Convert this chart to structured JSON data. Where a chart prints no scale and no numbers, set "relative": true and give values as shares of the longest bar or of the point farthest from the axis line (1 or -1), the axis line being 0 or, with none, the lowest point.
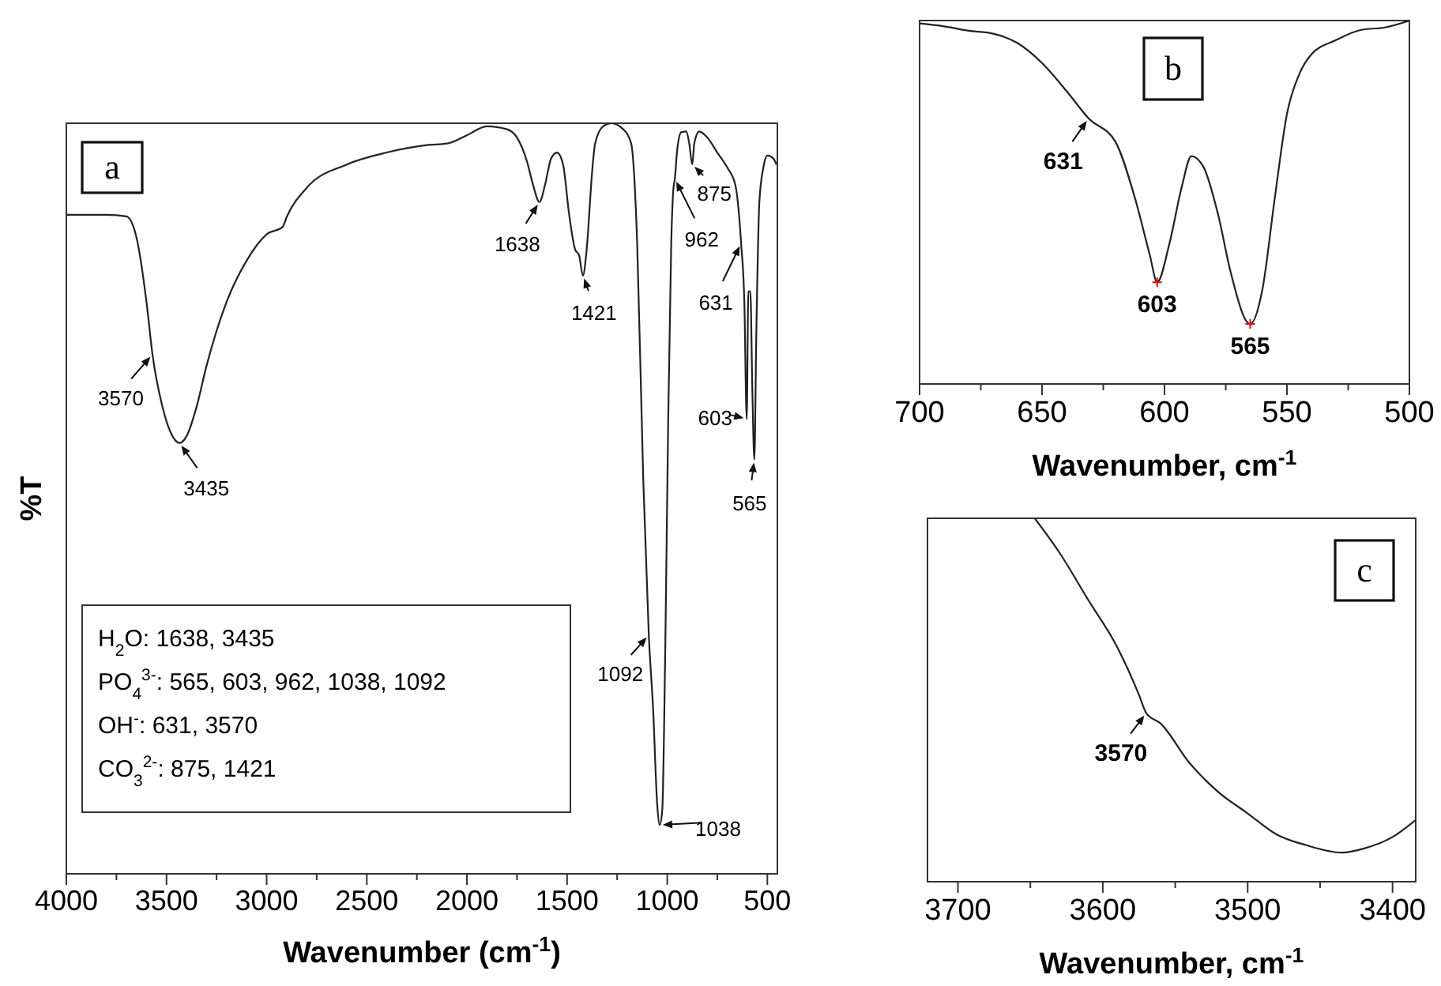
{
  "chart_data": [
    {
      "type": "line",
      "title": "a",
      "xlabel": "Wavenumber (cm$^{-1}$)",
      "ylabel": "%T",
      "relative": true,
      "xlim": [
        4000,
        450
      ],
      "xticks": [
        4000,
        {
          "value": 3750,
          "label": null
        },
        3500,
        {
          "value": 3250,
          "label": null
        },
        3000,
        {
          "value": 2750,
          "label": null
        },
        2500,
        {
          "value": 2250,
          "label": null
        },
        2000,
        {
          "value": 1750,
          "label": null
        },
        1500,
        {
          "value": 1250,
          "label": null
        },
        1000,
        {
          "value": 750,
          "label": null
        },
        500
      ],
      "series": [
        {
          "type": "line",
          "color": "#222222",
          "x": [
            4000,
            3800,
            3700,
            3650,
            3600,
            3570,
            3520,
            3470,
            3435,
            3400,
            3350,
            3300,
            3200,
            3100,
            3000,
            2920,
            2900,
            2800,
            2600,
            2400,
            2200,
            2100,
            2000,
            1900,
            1800,
            1750,
            1700,
            1670,
            1638,
            1610,
            1580,
            1550,
            1520,
            1490,
            1460,
            1440,
            1421,
            1405,
            1395,
            1380,
            1360,
            1320,
            1280,
            1220,
            1180,
            1150,
            1120,
            1092,
            1070,
            1050,
            1038,
            1025,
            1010,
            995,
            980,
            970,
            962,
            950,
            930,
            905,
            890,
            875,
            865,
            840,
            800,
            750,
            700,
            660,
            631,
            615,
            603,
            595,
            585,
            575,
            565,
            555,
            540,
            520,
            500,
            470,
            455
          ],
          "values": [
            0.878,
            0.878,
            0.876,
            0.848,
            0.762,
            0.692,
            0.622,
            0.583,
            0.574,
            0.583,
            0.622,
            0.677,
            0.762,
            0.817,
            0.852,
            0.862,
            0.875,
            0.914,
            0.945,
            0.961,
            0.971,
            0.973,
            0.984,
            0.996,
            0.992,
            0.981,
            0.949,
            0.918,
            0.895,
            0.918,
            0.953,
            0.961,
            0.945,
            0.879,
            0.832,
            0.824,
            0.797,
            0.824,
            0.856,
            0.918,
            0.973,
            0.996,
            1.0,
            0.992,
            0.973,
            0.84,
            0.528,
            0.318,
            0.217,
            0.092,
            0.065,
            0.084,
            0.295,
            0.606,
            0.84,
            0.91,
            0.926,
            0.965,
            0.988,
            0.989,
            0.973,
            0.945,
            0.973,
            0.989,
            0.981,
            0.961,
            0.941,
            0.918,
            0.84,
            0.762,
            0.606,
            0.776,
            0.776,
            0.645,
            0.552,
            0.723,
            0.895,
            0.941,
            0.957,
            0.953,
            0.945
          ]
        }
      ],
      "annotations": [
        {
          "text": "3570",
          "x": 3570,
          "y": 0.692
        },
        {
          "text": "3435",
          "x": 3435,
          "y": 0.574
        },
        {
          "text": "1638",
          "x": 1638,
          "y": 0.895
        },
        {
          "text": "1421",
          "x": 1421,
          "y": 0.797
        },
        {
          "text": "1092",
          "x": 1092,
          "y": 0.318
        },
        {
          "text": "1038",
          "x": 1038,
          "y": 0.065
        },
        {
          "text": "962",
          "x": 962,
          "y": 0.926
        },
        {
          "text": "875",
          "x": 875,
          "y": 0.945
        },
        {
          "text": "631",
          "x": 631,
          "y": 0.84
        },
        {
          "text": "603",
          "x": 603,
          "y": 0.606
        },
        {
          "text": "565",
          "x": 565,
          "y": 0.552
        },
        "H$_{2}$O: 1638, 3435",
        "PO$_{4}$$^{3-}$: 565, 603, 962, 1038, 1092",
        "OH$^{-}$: 631, 3570",
        "CO$_{3}$$^{2-}$: 875, 1421"
      ]
    },
    {
      "type": "line",
      "title": "b",
      "xlabel": "Wavenumber, cm$^{-1}$",
      "relative": true,
      "xlim": [
        700,
        500
      ],
      "xticks": [
        700,
        {
          "value": 675,
          "label": null
        },
        650,
        {
          "value": 625,
          "label": null
        },
        600,
        {
          "value": 575,
          "label": null
        },
        550,
        {
          "value": 525,
          "label": null
        },
        500
      ],
      "series": [
        {
          "type": "line",
          "color": "#222222",
          "x": [
            700,
            690,
            680,
            670,
            660,
            650,
            640,
            631,
            620,
            612,
            606,
            603,
            598,
            593,
            589,
            584,
            578,
            573,
            565,
            560,
            555,
            550,
            545,
            540,
            530,
            520,
            510,
            500
          ],
          "values": [
            0.992,
            0.984,
            0.972,
            0.964,
            0.938,
            0.883,
            0.806,
            0.731,
            0.666,
            0.51,
            0.355,
            0.28,
            0.386,
            0.541,
            0.627,
            0.596,
            0.463,
            0.308,
            0.165,
            0.261,
            0.51,
            0.743,
            0.852,
            0.907,
            0.946,
            0.974,
            0.981,
            1.0
          ]
        },
        {
          "type": "scatter",
          "color": "#ff0000",
          "marker": "cross",
          "x": [
            603,
            565
          ],
          "values": [
            0.28,
            0.165
          ]
        }
      ],
      "annotations": [
        {
          "text": "631",
          "x": 631,
          "y": 0.731
        },
        {
          "text": "603",
          "x": 603,
          "y": 0.28
        },
        {
          "text": "565",
          "x": 565,
          "y": 0.165
        }
      ]
    },
    {
      "type": "line",
      "title": "c",
      "xlabel": "Wavenumber, cm$^{-1}$",
      "relative": true,
      "xlim": [
        3721,
        3384
      ],
      "xticks": [
        3700,
        {
          "value": 3650,
          "label": null
        },
        3600,
        {
          "value": 3550,
          "label": null
        },
        3500,
        {
          "value": 3450,
          "label": null
        },
        3400
      ],
      "series": [
        {
          "type": "line",
          "color": "#222222",
          "x": [
            3647,
            3630,
            3610,
            3590,
            3575,
            3570,
            3560,
            3540,
            3520,
            3500,
            3480,
            3460,
            3435,
            3420,
            3400,
            3384
          ],
          "values": [
            1.0,
            0.906,
            0.775,
            0.645,
            0.514,
            0.464,
            0.435,
            0.326,
            0.246,
            0.188,
            0.13,
            0.101,
            0.08,
            0.091,
            0.123,
            0.17
          ]
        }
      ],
      "annotations": [
        {
          "text": "3570",
          "x": 3570,
          "y": 0.464
        }
      ]
    }
  ]
}
